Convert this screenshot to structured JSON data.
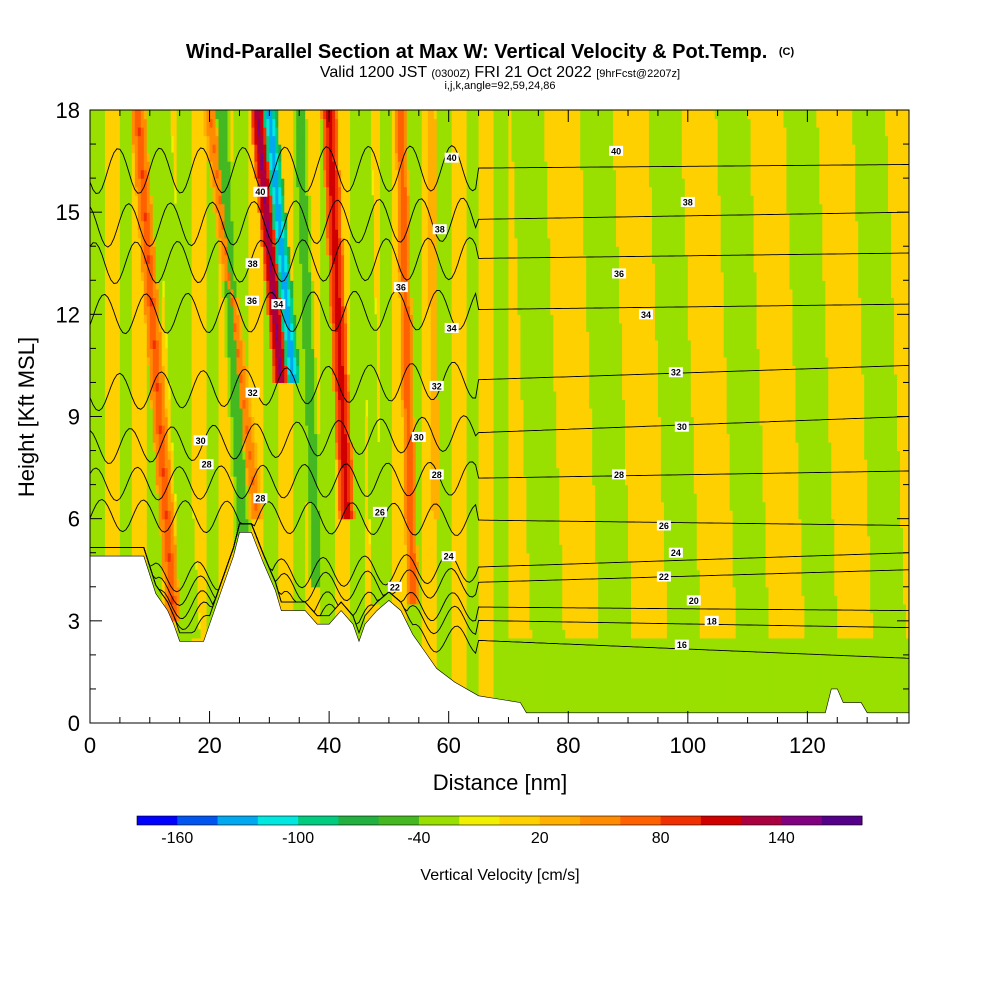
{
  "chart_data": {
    "type": "heatmap",
    "title": "Wind-Parallel Section at Max W: Vertical Velocity & Pot.Temp.",
    "title_mark": "(C)",
    "subtitle": {
      "valid_label": "Valid 1200 JST",
      "utc": "(0300Z)",
      "date": "FRI 21 Oct 2022",
      "forecast": "[9hrFcst@2207z]"
    },
    "section_params": "i,j,k,angle=92,59,24,86",
    "xlabel": "Distance [nm]",
    "ylabel": "Height [Kft MSL]",
    "xlim": [
      0,
      137
    ],
    "ylim": [
      0,
      18
    ],
    "x_ticks": [
      0,
      20,
      40,
      60,
      80,
      100,
      120
    ],
    "y_ticks": [
      0,
      3,
      6,
      9,
      12,
      15,
      18
    ],
    "colorbar": {
      "title": "Vertical Velocity [cm/s]",
      "tick_labels": [
        "-160",
        "-100",
        "-40",
        "20",
        "80",
        "140"
      ],
      "colors": [
        "#0000ff",
        "#0055f0",
        "#00a8f0",
        "#00e8e0",
        "#00cc80",
        "#22b040",
        "#44b820",
        "#99e000",
        "#f0f000",
        "#ffd000",
        "#ffb000",
        "#ff8c00",
        "#ff6000",
        "#f03000",
        "#d00000",
        "#aa0040",
        "#800080",
        "#550088"
      ]
    },
    "terrain_nm_kft": [
      [
        0,
        4.9
      ],
      [
        9,
        4.9
      ],
      [
        11,
        3.8
      ],
      [
        13,
        3.3
      ],
      [
        14,
        2.9
      ],
      [
        15,
        2.4
      ],
      [
        19,
        2.4
      ],
      [
        20,
        2.9
      ],
      [
        22,
        3.9
      ],
      [
        24,
        4.9
      ],
      [
        25,
        5.6
      ],
      [
        27,
        5.6
      ],
      [
        29,
        4.7
      ],
      [
        31,
        3.9
      ],
      [
        32,
        3.3
      ],
      [
        36,
        3.3
      ],
      [
        38,
        2.9
      ],
      [
        40,
        2.9
      ],
      [
        42,
        3.3
      ],
      [
        44,
        2.9
      ],
      [
        45,
        2.4
      ],
      [
        46,
        2.9
      ],
      [
        48,
        3.3
      ],
      [
        50,
        3.6
      ],
      [
        52,
        3.3
      ],
      [
        54,
        2.6
      ],
      [
        56,
        2.1
      ],
      [
        58,
        1.6
      ],
      [
        61,
        1.2
      ],
      [
        65,
        0.8
      ],
      [
        72,
        0.6
      ],
      [
        73,
        0.3
      ],
      [
        123,
        0.3
      ],
      [
        124,
        1.0
      ],
      [
        125,
        1.0
      ],
      [
        126,
        0.6
      ],
      [
        129,
        0.6
      ],
      [
        130,
        0.3
      ],
      [
        137,
        0.3
      ]
    ],
    "updraft_bands": [
      {
        "w": 80,
        "x_bottom": 14,
        "x_top": 8,
        "y_bottom": 3,
        "y_top": 18,
        "half_width": 1.3
      },
      {
        "w": 150,
        "x_bottom": 32,
        "x_top": 28,
        "y_bottom": 10,
        "y_top": 18,
        "half_width": 1.2
      },
      {
        "w": 60,
        "x_bottom": 28,
        "x_top": 20,
        "y_bottom": 6,
        "y_top": 18,
        "half_width": 1.2
      },
      {
        "w": 120,
        "x_bottom": 43,
        "x_top": 40,
        "y_bottom": 6,
        "y_top": 18,
        "half_width": 1.3
      },
      {
        "w": 80,
        "x_bottom": 54,
        "x_top": 52,
        "y_bottom": 3.5,
        "y_top": 18,
        "half_width": 1.0
      },
      {
        "w": 40,
        "x_bottom": 58,
        "x_top": 57,
        "y_bottom": 6,
        "y_top": 18,
        "half_width": 0.8
      }
    ],
    "downdraft_bands": [
      {
        "w": -140,
        "x_bottom": 34,
        "x_top": 30,
        "y_bottom": 10,
        "y_top": 18,
        "half_width": 1.3
      },
      {
        "w": -60,
        "x_bottom": 26,
        "x_top": 22,
        "y_bottom": 4,
        "y_top": 18,
        "half_width": 1.3
      },
      {
        "w": -60,
        "x_bottom": 38,
        "x_top": 35,
        "y_bottom": 4,
        "y_top": 18,
        "half_width": 1.2
      },
      {
        "w": -40,
        "x_bottom": 17,
        "x_top": 12,
        "y_bottom": 2.5,
        "y_top": 18,
        "half_width": 1.5
      },
      {
        "w": -40,
        "x_bottom": 48,
        "x_top": 46,
        "y_bottom": 3.5,
        "y_top": 18,
        "half_width": 1.0
      }
    ],
    "theta_contours": [
      {
        "label": "16",
        "y_left": 2.9,
        "y_right": 1.9
      },
      {
        "label": "18",
        "y_left": 3.2,
        "y_right": 2.8
      },
      {
        "label": "20",
        "y_left": 3.5,
        "y_right": 3.3
      },
      {
        "label": "22",
        "y_left": 3.8,
        "y_right": 4.5
      },
      {
        "label": "24",
        "y_left": 4.2,
        "y_right": 5.0
      },
      {
        "label": "26",
        "y_left": 6.1,
        "y_right": 5.8
      },
      {
        "label": "28",
        "y_left": 7.0,
        "y_right": 7.4
      },
      {
        "label": "30",
        "y_left": 8.1,
        "y_right": 9.0
      },
      {
        "label": "32",
        "y_left": 9.7,
        "y_right": 10.5
      },
      {
        "label": "34",
        "y_left": 12.0,
        "y_right": 12.3
      },
      {
        "label": "36",
        "y_left": 13.5,
        "y_right": 13.8
      },
      {
        "label": "38",
        "y_left": 14.6,
        "y_right": 15.0
      },
      {
        "label": "40",
        "y_left": 16.2,
        "y_right": 16.4
      }
    ],
    "contour_labels": [
      {
        "text": "40",
        "x": 28.5,
        "y": 15.6
      },
      {
        "text": "38",
        "x": 27.2,
        "y": 13.5
      },
      {
        "text": "36",
        "x": 27.1,
        "y": 12.4
      },
      {
        "text": "34",
        "x": 31.5,
        "y": 12.3
      },
      {
        "text": "32",
        "x": 27.2,
        "y": 9.7
      },
      {
        "text": "30",
        "x": 18.5,
        "y": 8.3
      },
      {
        "text": "28",
        "x": 19.5,
        "y": 7.6
      },
      {
        "text": "28",
        "x": 28.5,
        "y": 6.6
      },
      {
        "text": "40",
        "x": 60.5,
        "y": 16.6
      },
      {
        "text": "38",
        "x": 58.5,
        "y": 14.5
      },
      {
        "text": "36",
        "x": 52.0,
        "y": 12.8
      },
      {
        "text": "34",
        "x": 60.5,
        "y": 11.6
      },
      {
        "text": "32",
        "x": 58.0,
        "y": 9.9
      },
      {
        "text": "30",
        "x": 55.0,
        "y": 8.4
      },
      {
        "text": "28",
        "x": 58.0,
        "y": 7.3
      },
      {
        "text": "26",
        "x": 48.5,
        "y": 6.2
      },
      {
        "text": "24",
        "x": 60.0,
        "y": 4.9
      },
      {
        "text": "22",
        "x": 51.0,
        "y": 4.0
      },
      {
        "text": "40",
        "x": 88.0,
        "y": 16.8
      },
      {
        "text": "38",
        "x": 100.0,
        "y": 15.3
      },
      {
        "text": "36",
        "x": 88.5,
        "y": 13.2
      },
      {
        "text": "34",
        "x": 93.0,
        "y": 12.0
      },
      {
        "text": "32",
        "x": 98.0,
        "y": 10.3
      },
      {
        "text": "30",
        "x": 99.0,
        "y": 8.7
      },
      {
        "text": "28",
        "x": 88.5,
        "y": 7.3
      },
      {
        "text": "26",
        "x": 96.0,
        "y": 5.8
      },
      {
        "text": "24",
        "x": 98.0,
        "y": 5.0
      },
      {
        "text": "22",
        "x": 96.0,
        "y": 4.3
      },
      {
        "text": "20",
        "x": 101.0,
        "y": 3.6
      },
      {
        "text": "18",
        "x": 104.0,
        "y": 3.0
      },
      {
        "text": "16",
        "x": 99.0,
        "y": 2.3
      }
    ]
  }
}
